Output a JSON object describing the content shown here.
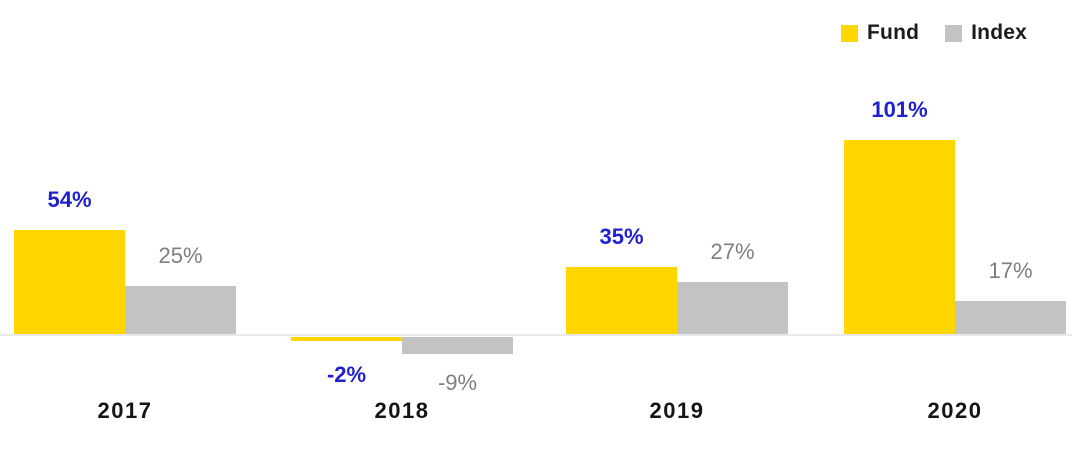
{
  "chart_data": {
    "type": "bar",
    "title": "",
    "xlabel": "",
    "ylabel": "",
    "categories": [
      "2017",
      "2018",
      "2019",
      "2020"
    ],
    "series": [
      {
        "name": "Fund",
        "color": "#FFD600",
        "label_color": "#2020CE",
        "values": [
          54,
          -2,
          35,
          101
        ],
        "labels": [
          "54%",
          "-2%",
          "35%",
          "101%"
        ]
      },
      {
        "name": "Index",
        "color": "#C3C3C3",
        "label_color": "#7E7E7E",
        "values": [
          25,
          -9,
          27,
          17
        ],
        "labels": [
          "25%",
          "-9%",
          "27%",
          "17%"
        ]
      }
    ],
    "value_suffix": "%",
    "ylim": [
      -9,
      101
    ],
    "grid": false,
    "legend_position": "top-right",
    "axis_line_color": "#E8E8E8"
  }
}
